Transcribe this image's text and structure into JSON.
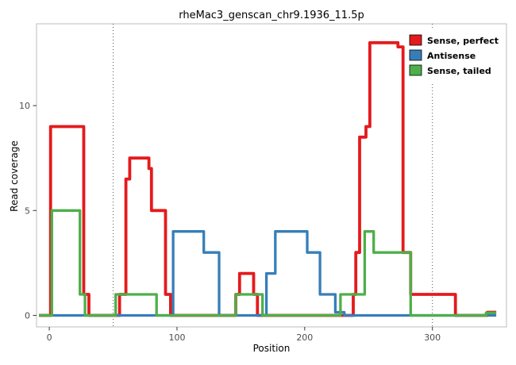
{
  "chart_data": {
    "type": "line",
    "subtype": "step-coverage-plot",
    "title": "rheMac3_genscan_chr9.1936_11.5p",
    "xlabel": "Position",
    "ylabel": "Read coverage",
    "xlim": [
      -10,
      358
    ],
    "ylim": [
      -0.55,
      13.9
    ],
    "xticks": [
      0,
      100,
      200,
      300
    ],
    "yticks": [
      0,
      5,
      10
    ],
    "grid": false,
    "vlines_dotted": [
      50,
      300
    ],
    "legend_position": "top-right",
    "panel": {
      "background": "#ffffff",
      "border_color": "#bdbdbd"
    },
    "tick_color": "#333333",
    "tick_label_color": "#4d4d4d",
    "vline_color": "#555555",
    "series": [
      {
        "name": "Sense, perfect",
        "color": "#E41A1C",
        "linewidth": 3.8,
        "points": [
          [
            -8,
            0
          ],
          [
            1,
            0
          ],
          [
            1,
            9
          ],
          [
            27,
            9
          ],
          [
            27,
            1
          ],
          [
            31,
            1
          ],
          [
            31,
            0
          ],
          [
            55,
            0
          ],
          [
            55,
            1
          ],
          [
            60,
            1
          ],
          [
            60,
            6.5
          ],
          [
            63,
            6.5
          ],
          [
            63,
            7.5
          ],
          [
            78,
            7.5
          ],
          [
            78,
            7
          ],
          [
            80,
            7
          ],
          [
            80,
            5
          ],
          [
            91,
            5
          ],
          [
            91,
            1
          ],
          [
            95,
            1
          ],
          [
            95,
            0
          ],
          [
            146,
            0
          ],
          [
            146,
            1
          ],
          [
            149,
            1
          ],
          [
            149,
            2
          ],
          [
            160,
            2
          ],
          [
            160,
            1
          ],
          [
            163,
            1
          ],
          [
            163,
            0
          ],
          [
            238,
            0
          ],
          [
            238,
            1
          ],
          [
            240,
            1
          ],
          [
            240,
            3
          ],
          [
            243,
            3
          ],
          [
            243,
            8.5
          ],
          [
            248,
            8.5
          ],
          [
            248,
            9
          ],
          [
            251,
            9
          ],
          [
            251,
            13
          ],
          [
            273,
            13
          ],
          [
            273,
            12.8
          ],
          [
            277,
            12.8
          ],
          [
            277,
            3
          ],
          [
            283,
            3
          ],
          [
            283,
            1
          ],
          [
            318,
            1
          ],
          [
            318,
            0
          ],
          [
            343,
            0
          ],
          [
            343,
            0.15
          ],
          [
            350,
            0.15
          ]
        ]
      },
      {
        "name": "Antisense",
        "color": "#377EB8",
        "linewidth": 3.3,
        "points": [
          [
            -8,
            0
          ],
          [
            97,
            0
          ],
          [
            97,
            4
          ],
          [
            121,
            4
          ],
          [
            121,
            3
          ],
          [
            133,
            3
          ],
          [
            133,
            0
          ],
          [
            170,
            0
          ],
          [
            170,
            2
          ],
          [
            177,
            2
          ],
          [
            177,
            4
          ],
          [
            202,
            4
          ],
          [
            202,
            3
          ],
          [
            212,
            3
          ],
          [
            212,
            1
          ],
          [
            224,
            1
          ],
          [
            224,
            0.15
          ],
          [
            231,
            0.15
          ],
          [
            231,
            0
          ],
          [
            350,
            0
          ]
        ]
      },
      {
        "name": "Sense, tailed",
        "color": "#4DAF4A",
        "linewidth": 3.3,
        "points": [
          [
            -8,
            0
          ],
          [
            2,
            0
          ],
          [
            2,
            5
          ],
          [
            24,
            5
          ],
          [
            24,
            1
          ],
          [
            28,
            1
          ],
          [
            28,
            0
          ],
          [
            52,
            0
          ],
          [
            52,
            1
          ],
          [
            84,
            1
          ],
          [
            84,
            0
          ],
          [
            146,
            0
          ],
          [
            146,
            1
          ],
          [
            167,
            1
          ],
          [
            167,
            0
          ],
          [
            228,
            0
          ],
          [
            228,
            1
          ],
          [
            247,
            1
          ],
          [
            247,
            4
          ],
          [
            254,
            4
          ],
          [
            254,
            3
          ],
          [
            283,
            3
          ],
          [
            283,
            0
          ],
          [
            342,
            0
          ],
          [
            342,
            0.12
          ],
          [
            350,
            0.12
          ]
        ]
      }
    ]
  }
}
